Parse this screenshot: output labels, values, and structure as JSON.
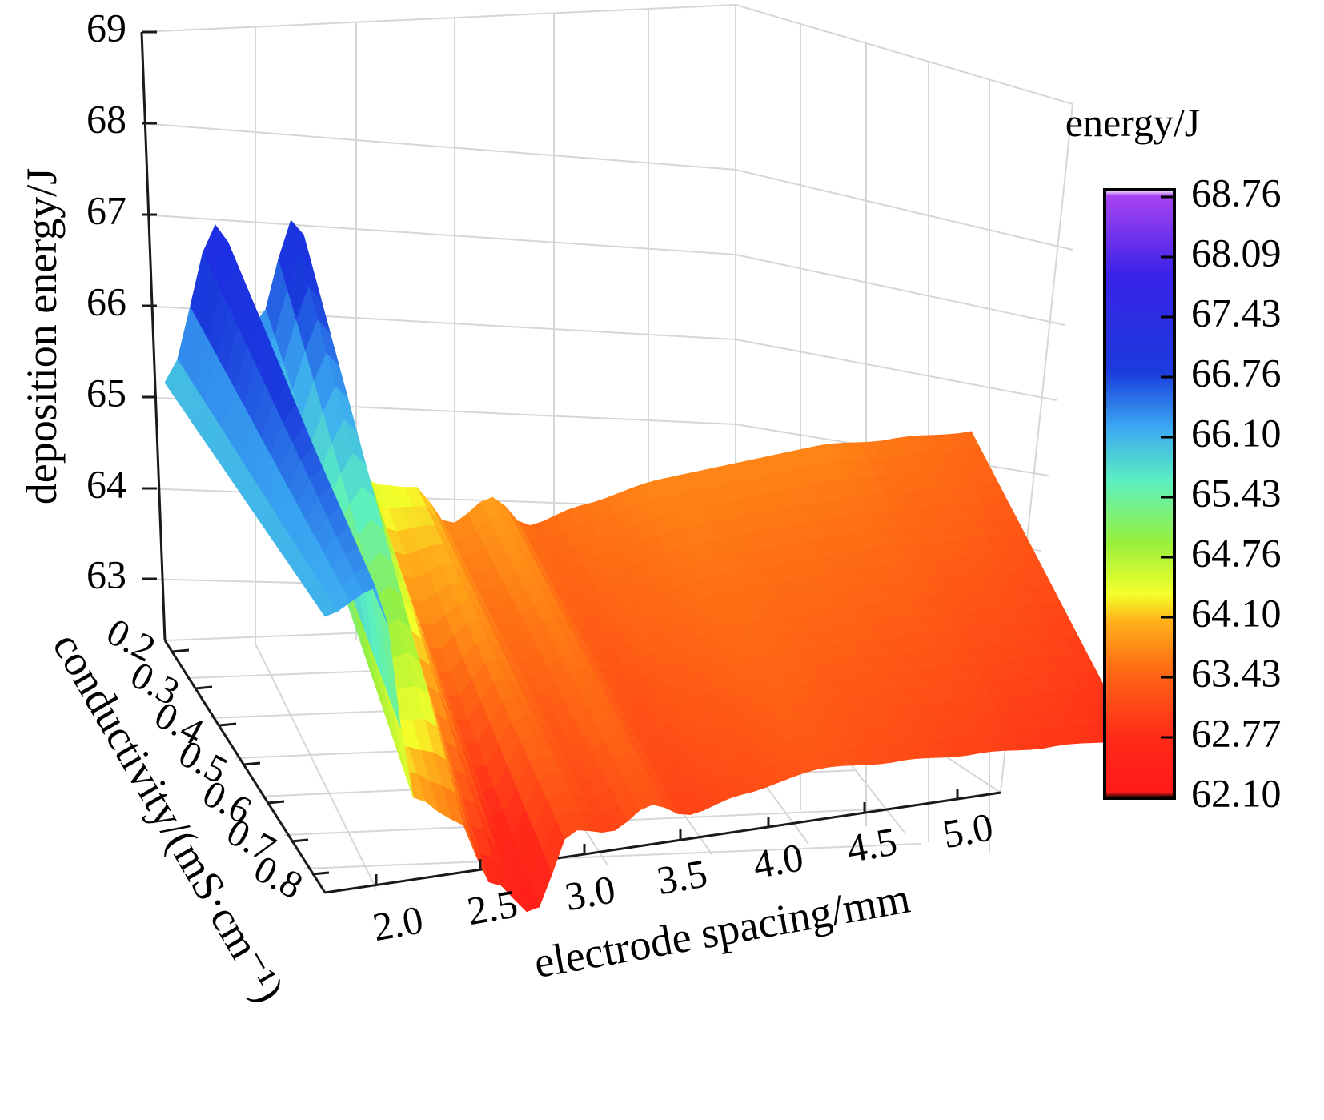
{
  "chart_data": {
    "type": "surface3d",
    "x_axis": {
      "label": "electrode spacing/mm",
      "ticks": [
        "2.0",
        "2.5",
        "3.0",
        "3.5",
        "4.0",
        "4.5",
        "5.0"
      ],
      "range": [
        1.9,
        5.1
      ]
    },
    "y_axis": {
      "label": "conductivity/(mS·cm⁻¹)",
      "ticks": [
        "0.2",
        "0.3",
        "0.4",
        "0.5",
        "0.6",
        "0.7",
        "0.8"
      ],
      "range": [
        0.2,
        0.8
      ]
    },
    "z_axis": {
      "label": "deposition energy/J",
      "ticks": [
        "63",
        "64",
        "65",
        "66",
        "67",
        "68",
        "69"
      ],
      "range": [
        62.0,
        69.0
      ]
    },
    "colorbar": {
      "title": "energy/J",
      "ticks": [
        "68.76",
        "68.09",
        "67.43",
        "66.76",
        "66.10",
        "65.43",
        "64.76",
        "64.10",
        "63.43",
        "62.77",
        "62.10"
      ],
      "range": [
        62.1,
        68.76
      ],
      "colors": [
        "#000000",
        "#ff1a1a",
        "#ff4a10",
        "#ff8c1a",
        "#ffd21a",
        "#e8ff2a",
        "#8cf03c",
        "#58f0b8",
        "#2f8cf0",
        "#1a3cdc",
        "#3a1ae6",
        "#a040f0",
        "#ffffff"
      ]
    },
    "surface_ridge_profile": {
      "x": [
        1.9,
        2.1,
        2.25,
        2.4,
        2.55,
        2.7,
        2.85,
        3.0,
        3.15,
        3.3,
        3.5,
        3.8,
        4.1,
        4.4,
        4.7,
        5.0
      ],
      "z_at_low_conductivity": [
        65.8,
        67.4,
        66.2,
        67.3,
        65.4,
        64.2,
        64.1,
        63.6,
        63.8,
        63.4,
        63.5,
        63.6,
        63.6,
        63.6,
        63.5,
        63.4
      ],
      "z_at_high_conductivity": [
        66.0,
        66.2,
        63.8,
        63.5,
        62.7,
        62.3,
        63.1,
        63.0,
        63.2,
        63.0,
        63.1,
        63.2,
        63.1,
        63.0,
        62.9,
        62.8
      ]
    },
    "grid": true,
    "legend": "colorbar-right"
  }
}
